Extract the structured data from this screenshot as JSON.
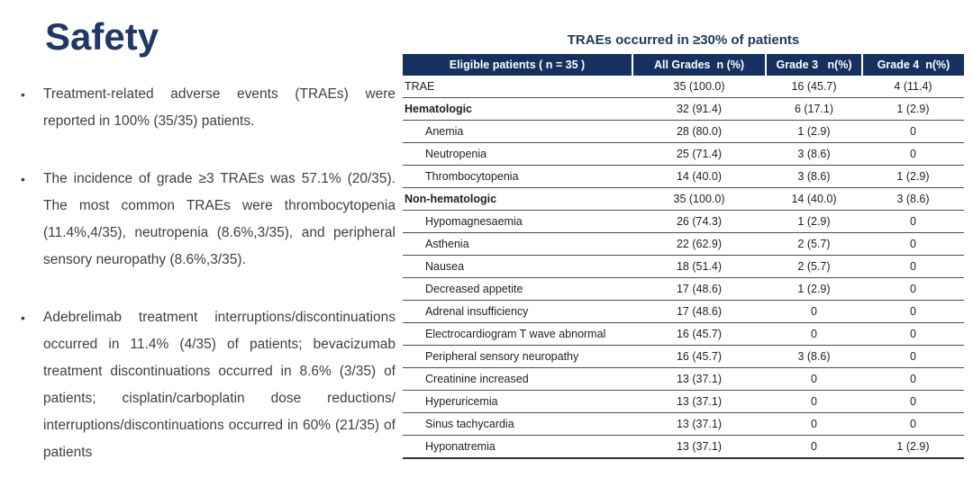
{
  "slide": {
    "title": "Safety",
    "bullet_glyph": "•",
    "bullets": [
      "Treatment-related adverse events (TRAEs) were reported in 100% (35/35) patients.",
      "The incidence of grade ≥3 TRAEs was 57.1% (20/35). The most common TRAEs were thrombocytopenia (11.4%,4/35), neutropenia (8.6%,3/35), and peripheral sensory neuropathy (8.6%,3/35).",
      "Adebrelimab treatment interruptions/​discontinuations occurred in 11.4% (4/35) of patients; bevacizumab treatment discontinuations occurred in 8.6% (3/35) of patients; cisplatin/carboplatin dose reductions/​interruptions/​discontinuations occurred in 60% (21/35) of patients"
    ]
  },
  "table": {
    "title": "TRAEs occurred in ≥30% of patients",
    "headers": [
      "Eligible patients ( n = 35 )",
      "All Grades  n (%)",
      "Grade 3   n(%)",
      "Grade 4  n(%)"
    ],
    "rows": [
      {
        "label": "TRAE",
        "style": "plain",
        "all_grades": "35 (100.0)",
        "grade3": "16 (45.7)",
        "grade4": "4 (11.4)"
      },
      {
        "label": "Hematologic",
        "style": "bold",
        "all_grades": "32 (91.4)",
        "grade3": "6 (17.1)",
        "grade4": "1 (2.9)"
      },
      {
        "label": "Anemia",
        "style": "indent",
        "all_grades": "28 (80.0)",
        "grade3": "1 (2.9)",
        "grade4": "0"
      },
      {
        "label": "Neutropenia",
        "style": "indent",
        "all_grades": "25 (71.4)",
        "grade3": "3 (8.6)",
        "grade4": "0"
      },
      {
        "label": "Thrombocytopenia",
        "style": "indent",
        "all_grades": "14 (40.0)",
        "grade3": "3 (8.6)",
        "grade4": "1 (2.9)"
      },
      {
        "label": "Non-hematologic",
        "style": "bold",
        "all_grades": "35 (100.0)",
        "grade3": "14 (40.0)",
        "grade4": "3 (8.6)"
      },
      {
        "label": "Hypomagnesaemia",
        "style": "indent",
        "all_grades": "26 (74.3)",
        "grade3": "1 (2.9)",
        "grade4": "0"
      },
      {
        "label": "Asthenia",
        "style": "indent",
        "all_grades": "22 (62.9)",
        "grade3": "2 (5.7)",
        "grade4": "0"
      },
      {
        "label": "Nausea",
        "style": "indent",
        "all_grades": "18 (51.4)",
        "grade3": "2 (5.7)",
        "grade4": "0"
      },
      {
        "label": "Decreased appetite",
        "style": "indent",
        "all_grades": "17 (48.6)",
        "grade3": "1 (2.9)",
        "grade4": "0"
      },
      {
        "label": "Adrenal insufficiency",
        "style": "indent",
        "all_grades": "17 (48.6)",
        "grade3": "0",
        "grade4": "0"
      },
      {
        "label": "Electrocardiogram T wave abnormal",
        "style": "indent",
        "all_grades": "16 (45.7)",
        "grade3": "0",
        "grade4": "0"
      },
      {
        "label": "Peripheral sensory neuropathy",
        "style": "indent",
        "all_grades": "16 (45.7)",
        "grade3": "3 (8.6)",
        "grade4": "0"
      },
      {
        "label": "Creatinine increased",
        "style": "indent",
        "all_grades": "13 (37.1)",
        "grade3": "0",
        "grade4": "0"
      },
      {
        "label": "Hyperuricemia",
        "style": "indent",
        "all_grades": "13 (37.1)",
        "grade3": "0",
        "grade4": "0"
      },
      {
        "label": "Sinus tachycardia",
        "style": "indent",
        "all_grades": "13 (37.1)",
        "grade3": "0",
        "grade4": "0"
      },
      {
        "label": "Hyponatremia",
        "style": "indent",
        "all_grades": "13 (37.1)",
        "grade3": "0",
        "grade4": "1 (2.9)"
      }
    ]
  },
  "colors": {
    "title_navy": "#1f3864",
    "table_header_bg": "#16315f",
    "table_header_text": "#ffffff",
    "body_text": "#404040",
    "table_text": "#1f1f1f",
    "row_line": "#4d4d4d"
  }
}
